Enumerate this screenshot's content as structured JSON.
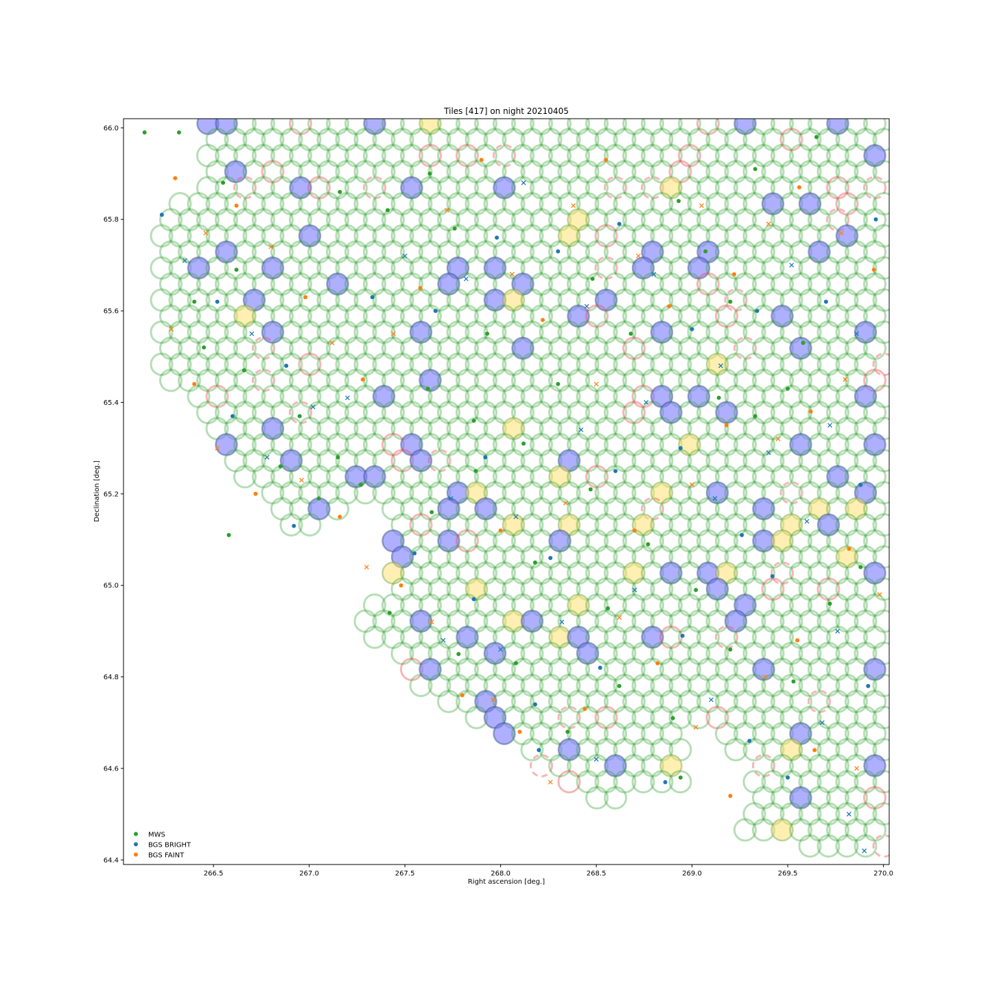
{
  "chart_data": {
    "type": "scatter",
    "title": "Tiles [417] on night 20210405",
    "xlabel": "Right ascension [deg.]",
    "ylabel": "Declination [deg.]",
    "xlim": [
      266.03,
      270.03
    ],
    "ylim": [
      64.39,
      66.02
    ],
    "xticks": [
      266.5,
      267.0,
      267.5,
      268.0,
      268.5,
      269.0,
      269.5,
      270.0
    ],
    "xtick_labels": [
      "266.5",
      "267.0",
      "267.5",
      "268.0",
      "268.5",
      "269.0",
      "269.5",
      "270.0"
    ],
    "yticks": [
      64.4,
      64.6,
      64.8,
      65.0,
      65.2,
      65.4,
      65.6,
      65.8,
      66.0
    ],
    "ytick_labels": [
      "64.4",
      "64.6",
      "64.8",
      "65.0",
      "65.2",
      "65.4",
      "65.6",
      "65.8",
      "66.0"
    ],
    "grid": false,
    "legend_position": "lower-left",
    "legend": [
      {
        "label": "MWS",
        "color": "#2ca02c"
      },
      {
        "label": "BGS BRIGHT",
        "color": "#1f77b4"
      },
      {
        "label": "BGS FAINT",
        "color": "#ff7f0e"
      }
    ],
    "colors": {
      "patrol_ring": "#2ca02c",
      "unassigned_ring": "#e8484c",
      "blue_fill": "#7a7aff",
      "yellow_fill": "#ffe066"
    },
    "series": [
      {
        "name": "MWS",
        "marker": "circle",
        "points": [
          [
            266.14,
            65.99
          ],
          [
            266.32,
            65.99
          ],
          [
            266.55,
            65.88
          ],
          [
            266.62,
            65.69
          ],
          [
            266.4,
            65.62
          ],
          [
            266.45,
            65.52
          ],
          [
            266.66,
            65.47
          ],
          [
            266.95,
            65.37
          ],
          [
            267.15,
            65.28
          ],
          [
            267.27,
            65.22
          ],
          [
            267.16,
            65.86
          ],
          [
            267.41,
            65.82
          ],
          [
            267.63,
            65.9
          ],
          [
            267.76,
            65.78
          ],
          [
            267.93,
            65.55
          ],
          [
            267.86,
            65.36
          ],
          [
            267.62,
            65.43
          ],
          [
            267.87,
            65.25
          ],
          [
            268.12,
            65.31
          ],
          [
            268.3,
            65.44
          ],
          [
            268.48,
            65.67
          ],
          [
            268.68,
            65.55
          ],
          [
            268.93,
            65.84
          ],
          [
            269.07,
            65.73
          ],
          [
            269.33,
            65.91
          ],
          [
            269.65,
            65.98
          ],
          [
            269.2,
            65.62
          ],
          [
            269.58,
            65.53
          ],
          [
            269.14,
            65.41
          ],
          [
            269.5,
            65.43
          ],
          [
            269.33,
            65.37
          ],
          [
            268.77,
            65.09
          ],
          [
            268.56,
            64.95
          ],
          [
            268.35,
            64.68
          ],
          [
            268.62,
            64.78
          ],
          [
            268.9,
            64.71
          ],
          [
            268.08,
            64.83
          ],
          [
            267.78,
            64.85
          ],
          [
            267.42,
            64.94
          ],
          [
            267.64,
            65.16
          ],
          [
            268.18,
            65.05
          ],
          [
            268.47,
            65.21
          ],
          [
            269.02,
            64.99
          ],
          [
            269.2,
            64.86
          ],
          [
            269.53,
            64.79
          ],
          [
            269.72,
            64.96
          ],
          [
            269.88,
            65.04
          ],
          [
            268.94,
            64.58
          ],
          [
            267.05,
            65.19
          ],
          [
            266.85,
            65.26
          ],
          [
            266.58,
            65.11
          ]
        ]
      },
      {
        "name": "BGS BRIGHT",
        "marker": "mixed",
        "points": [
          [
            266.23,
            65.81
          ],
          [
            266.35,
            65.71
          ],
          [
            266.52,
            65.62
          ],
          [
            266.7,
            65.55
          ],
          [
            266.88,
            65.48
          ],
          [
            267.02,
            65.39
          ],
          [
            266.6,
            65.37
          ],
          [
            266.78,
            65.28
          ],
          [
            266.92,
            65.13
          ],
          [
            267.2,
            65.41
          ],
          [
            267.33,
            65.63
          ],
          [
            267.5,
            65.72
          ],
          [
            267.66,
            65.6
          ],
          [
            267.82,
            65.67
          ],
          [
            267.98,
            65.76
          ],
          [
            268.12,
            65.88
          ],
          [
            268.3,
            65.73
          ],
          [
            268.45,
            65.61
          ],
          [
            268.62,
            65.79
          ],
          [
            268.8,
            65.68
          ],
          [
            269.0,
            65.56
          ],
          [
            269.15,
            65.48
          ],
          [
            269.34,
            65.6
          ],
          [
            269.52,
            65.7
          ],
          [
            269.7,
            65.62
          ],
          [
            269.86,
            65.55
          ],
          [
            269.96,
            65.8
          ],
          [
            269.72,
            65.35
          ],
          [
            269.88,
            65.22
          ],
          [
            269.6,
            65.14
          ],
          [
            269.42,
            65.02
          ],
          [
            269.76,
            64.9
          ],
          [
            269.92,
            64.78
          ],
          [
            269.68,
            64.7
          ],
          [
            269.5,
            64.58
          ],
          [
            269.82,
            64.5
          ],
          [
            269.3,
            64.66
          ],
          [
            269.1,
            64.75
          ],
          [
            268.95,
            64.89
          ],
          [
            268.7,
            64.99
          ],
          [
            268.52,
            64.82
          ],
          [
            268.32,
            64.92
          ],
          [
            268.18,
            64.74
          ],
          [
            268.0,
            64.86
          ],
          [
            267.86,
            64.97
          ],
          [
            267.7,
            64.88
          ],
          [
            267.55,
            65.07
          ],
          [
            267.74,
            65.19
          ],
          [
            267.92,
            65.28
          ],
          [
            268.08,
            65.15
          ],
          [
            268.26,
            65.06
          ],
          [
            268.42,
            65.34
          ],
          [
            268.6,
            65.25
          ],
          [
            268.76,
            65.4
          ],
          [
            268.94,
            65.3
          ],
          [
            269.12,
            65.19
          ],
          [
            269.26,
            65.11
          ],
          [
            269.4,
            65.29
          ],
          [
            268.86,
            64.57
          ],
          [
            268.5,
            64.62
          ],
          [
            268.2,
            64.64
          ],
          [
            269.9,
            64.42
          ]
        ]
      },
      {
        "name": "BGS FAINT",
        "marker": "mixed",
        "points": [
          [
            266.3,
            65.89
          ],
          [
            266.46,
            65.77
          ],
          [
            266.62,
            65.83
          ],
          [
            266.8,
            65.74
          ],
          [
            266.98,
            65.63
          ],
          [
            267.12,
            65.53
          ],
          [
            267.28,
            65.45
          ],
          [
            267.44,
            65.55
          ],
          [
            267.58,
            65.65
          ],
          [
            267.72,
            65.82
          ],
          [
            267.9,
            65.93
          ],
          [
            268.06,
            65.68
          ],
          [
            268.22,
            65.58
          ],
          [
            268.38,
            65.83
          ],
          [
            268.55,
            65.93
          ],
          [
            268.72,
            65.72
          ],
          [
            268.88,
            65.61
          ],
          [
            269.05,
            65.83
          ],
          [
            269.22,
            65.68
          ],
          [
            269.4,
            65.79
          ],
          [
            269.56,
            65.87
          ],
          [
            269.78,
            65.77
          ],
          [
            269.95,
            65.69
          ],
          [
            269.8,
            65.45
          ],
          [
            269.62,
            65.38
          ],
          [
            269.45,
            65.32
          ],
          [
            269.82,
            65.08
          ],
          [
            269.98,
            64.98
          ],
          [
            269.55,
            64.88
          ],
          [
            269.38,
            64.8
          ],
          [
            269.64,
            64.64
          ],
          [
            269.86,
            64.6
          ],
          [
            269.2,
            64.54
          ],
          [
            269.02,
            64.69
          ],
          [
            268.82,
            64.83
          ],
          [
            268.62,
            64.93
          ],
          [
            268.44,
            64.73
          ],
          [
            268.26,
            64.57
          ],
          [
            268.1,
            64.68
          ],
          [
            267.96,
            64.75
          ],
          [
            267.8,
            64.76
          ],
          [
            267.64,
            64.92
          ],
          [
            267.48,
            65.0
          ],
          [
            267.3,
            65.04
          ],
          [
            267.16,
            65.15
          ],
          [
            266.96,
            65.23
          ],
          [
            266.72,
            65.2
          ],
          [
            266.52,
            65.3
          ],
          [
            266.4,
            65.44
          ],
          [
            266.28,
            65.56
          ],
          [
            268.0,
            65.12
          ],
          [
            268.34,
            65.18
          ],
          [
            268.7,
            65.12
          ],
          [
            269.0,
            65.22
          ],
          [
            269.18,
            65.35
          ],
          [
            268.5,
            65.44
          ]
        ]
      }
    ]
  }
}
